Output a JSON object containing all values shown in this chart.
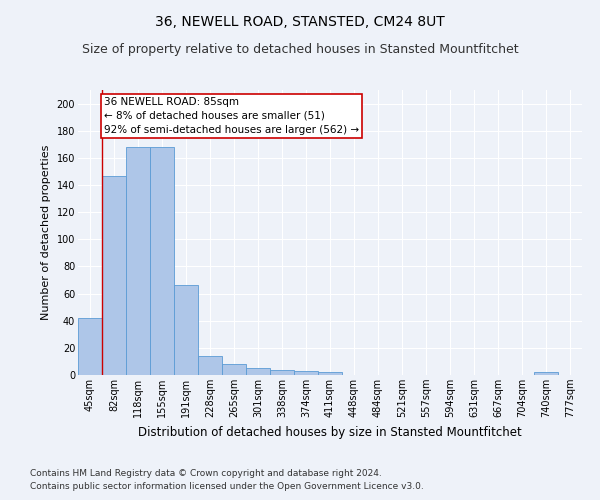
{
  "title1": "36, NEWELL ROAD, STANSTED, CM24 8UT",
  "title2": "Size of property relative to detached houses in Stansted Mountfitchet",
  "xlabel": "Distribution of detached houses by size in Stansted Mountfitchet",
  "ylabel": "Number of detached properties",
  "categories": [
    "45sqm",
    "82sqm",
    "118sqm",
    "155sqm",
    "191sqm",
    "228sqm",
    "265sqm",
    "301sqm",
    "338sqm",
    "374sqm",
    "411sqm",
    "448sqm",
    "484sqm",
    "521sqm",
    "557sqm",
    "594sqm",
    "631sqm",
    "667sqm",
    "704sqm",
    "740sqm",
    "777sqm"
  ],
  "values": [
    42,
    147,
    168,
    168,
    66,
    14,
    8,
    5,
    4,
    3,
    2,
    0,
    0,
    0,
    0,
    0,
    0,
    0,
    0,
    2,
    0
  ],
  "bar_color": "#aec6e8",
  "bar_edge_color": "#5b9bd5",
  "marker_line_color": "#cc0000",
  "annotation_line1": "36 NEWELL ROAD: 85sqm",
  "annotation_line2": "← 8% of detached houses are smaller (51)",
  "annotation_line3": "92% of semi-detached houses are larger (562) →",
  "annotation_box_color": "#ffffff",
  "annotation_box_edge": "#cc0000",
  "ylim": [
    0,
    210
  ],
  "yticks": [
    0,
    20,
    40,
    60,
    80,
    100,
    120,
    140,
    160,
    180,
    200
  ],
  "footnote1": "Contains HM Land Registry data © Crown copyright and database right 2024.",
  "footnote2": "Contains public sector information licensed under the Open Government Licence v3.0.",
  "bg_color": "#eef2f9",
  "plot_bg_color": "#eef2f9",
  "grid_color": "#ffffff",
  "title1_fontsize": 10,
  "title2_fontsize": 9,
  "tick_fontsize": 7,
  "xlabel_fontsize": 8.5,
  "ylabel_fontsize": 8,
  "footnote_fontsize": 6.5,
  "annotation_fontsize": 7.5
}
